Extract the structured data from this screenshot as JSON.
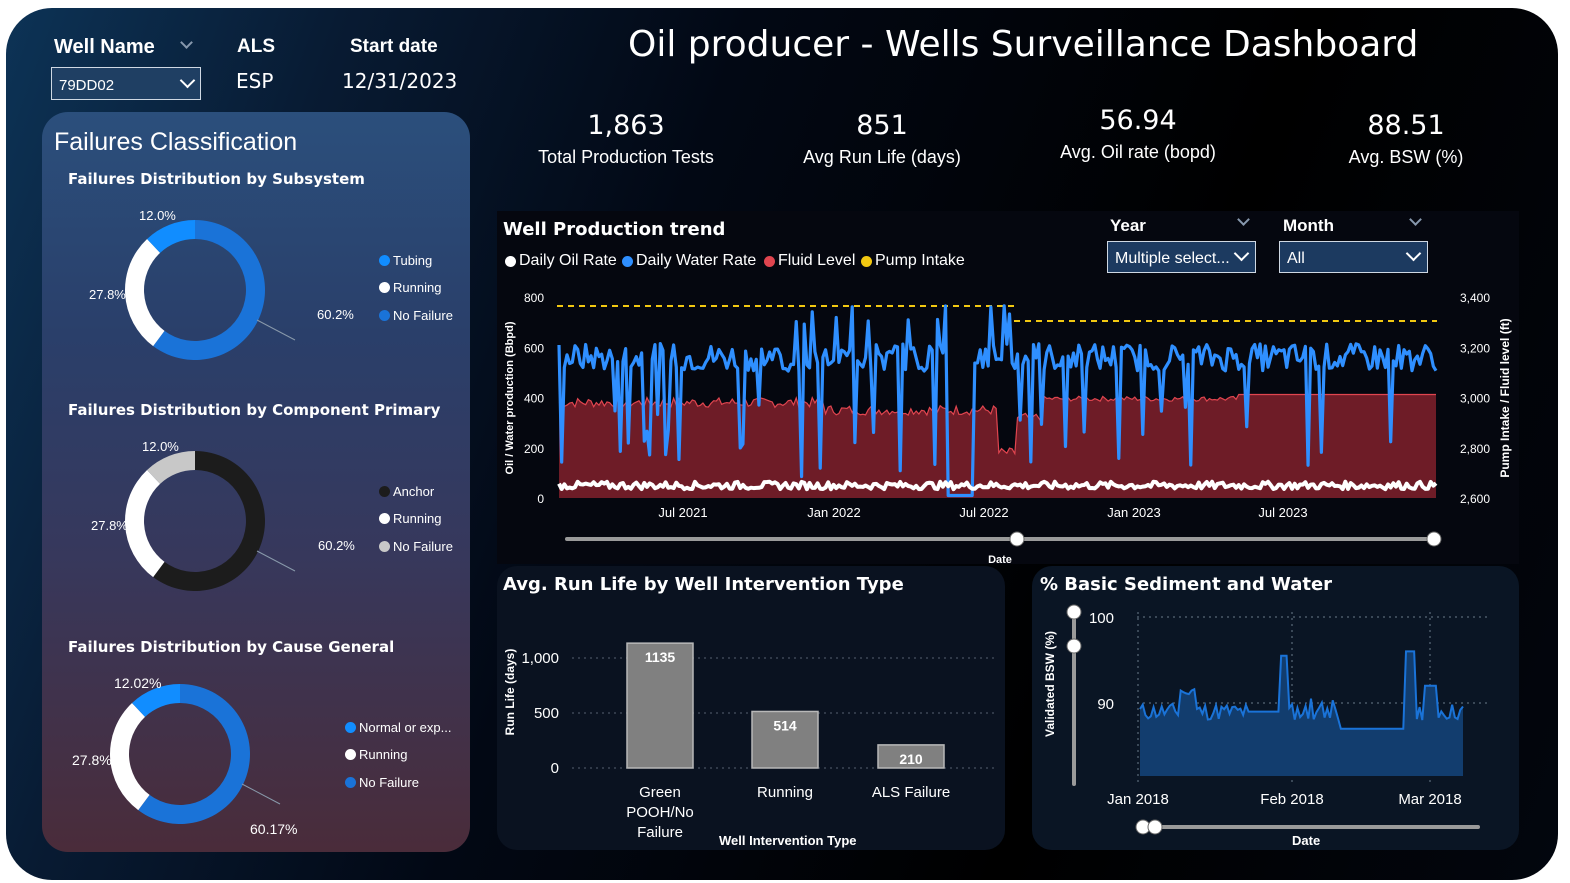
{
  "header": {
    "well_name_label": "Well Name",
    "well_name_value": "79DD02",
    "als_label": "ALS",
    "als_value": "ESP",
    "start_date_label": "Start date",
    "start_date_value": "12/31/2023",
    "title": "Oil producer - Wells Surveillance Dashboard"
  },
  "kpis": [
    {
      "value": "1,863",
      "label": "Total Production Tests"
    },
    {
      "value": "851",
      "label": "Avg Run Life (days)"
    },
    {
      "value": "56.94",
      "label": "Avg. Oil rate (bopd)"
    },
    {
      "value": "88.51",
      "label": "Avg. BSW (%)"
    }
  ],
  "failures": {
    "title": "Failures Classification",
    "donuts": [
      {
        "title": "Failures Distribution by Subsystem",
        "labels": [
          "12.0%",
          "27.8%",
          "60.2%"
        ],
        "legend": [
          "Tubing",
          "Running",
          "No Failure"
        ],
        "colors": [
          "#118dff",
          "#ffffff",
          "#1a73d8"
        ],
        "values": [
          12.0,
          27.8,
          60.2
        ]
      },
      {
        "title": "Failures Distribution by Component Primary",
        "labels": [
          "12.0%",
          "27.8%",
          "60.2%"
        ],
        "legend": [
          "Anchor",
          "Running",
          "No Failure"
        ],
        "colors": [
          "#c8c8c8",
          "#ffffff",
          "#1c1c1c"
        ],
        "values": [
          12.0,
          27.8,
          60.2
        ]
      },
      {
        "title": "Failures Distribution by Cause General",
        "labels": [
          "12.02%",
          "27.8%",
          "60.17%"
        ],
        "legend": [
          "Normal or exp...",
          "Running",
          "No Failure"
        ],
        "colors": [
          "#118dff",
          "#ffffff",
          "#1a73d8"
        ],
        "values": [
          12.02,
          27.8,
          60.17
        ]
      }
    ]
  },
  "production": {
    "title": "Well Production trend",
    "legend": [
      "Daily Oil Rate",
      "Daily Water Rate",
      "Fluid Level",
      "Pump Intake"
    ],
    "colors": {
      "oil": "#ffffff",
      "water": "#2f8fff",
      "fluid": "#e0454f",
      "pump": "#f2c811"
    },
    "year_label": "Year",
    "year_value": "Multiple select...",
    "month_label": "Month",
    "month_value": "All",
    "ylabel_left": "Oil / Water production (Bbpd)",
    "ylabel_right": "Pump Intake / Fluid level (ft)",
    "left_ticks": [
      "800",
      "600",
      "400",
      "200",
      "0"
    ],
    "right_ticks": [
      "3,400",
      "3,200",
      "3,000",
      "2,800",
      "2,600"
    ],
    "x_ticks": [
      "Jul 2021",
      "Jan 2022",
      "Jul 2022",
      "Jan 2023",
      "Jul 2023"
    ],
    "xlabel": "Date"
  },
  "run_life": {
    "title": "Avg. Run Life by Well Intervention Type",
    "ylabel": "Run Life (days)",
    "xlabel": "Well Intervention Type",
    "y_ticks": [
      "1,000",
      "500",
      "0"
    ],
    "bar_color": "#808080",
    "categories": [
      [
        "Green",
        "POOH/No",
        "Failure"
      ],
      [
        "Running"
      ],
      [
        "ALS Failure"
      ]
    ],
    "values": [
      1135,
      514,
      210
    ]
  },
  "bsw": {
    "title": "% Basic Sediment and Water",
    "ylabel": "Validated BSW (%)",
    "xlabel": "Date",
    "y_ticks": [
      "100",
      "90"
    ],
    "x_ticks": [
      "Jan 2018",
      "Feb 2018",
      "Mar 2018"
    ],
    "color": "#1a73d8"
  },
  "chart_data": [
    {
      "type": "line",
      "title": "Well Production trend",
      "xlabel": "Date",
      "ylabel": "Oil / Water production (Bbpd)",
      "ylabel_right": "Pump Intake / Fluid level (ft)",
      "ylim": [
        0,
        800
      ],
      "ylim_right": [
        2600,
        3400
      ],
      "x": [
        "2021-01",
        "2021-04",
        "2021-07",
        "2021-10",
        "2022-01",
        "2022-04",
        "2022-07",
        "2022-10",
        "2023-01",
        "2023-04",
        "2023-07",
        "2023-10",
        "2023-12"
      ],
      "series": [
        {
          "name": "Daily Oil Rate",
          "values": [
            50,
            55,
            55,
            50,
            55,
            50,
            50,
            55,
            55,
            55,
            55,
            55,
            55
          ]
        },
        {
          "name": "Daily Water Rate",
          "values": [
            580,
            620,
            600,
            560,
            540,
            560,
            520,
            580,
            560,
            600,
            550,
            560,
            550
          ]
        },
        {
          "name": "Fluid Level",
          "values": [
            2930,
            2970,
            2990,
            2960,
            2900,
            2970,
            2990,
            3000,
            3000,
            3010,
            3010,
            3010,
            3010
          ]
        },
        {
          "name": "Pump Intake",
          "values": [
            3380,
            3380,
            3380,
            3380,
            3380,
            3380,
            3330,
            3330,
            3330,
            3330,
            3330,
            3330,
            3330
          ]
        }
      ]
    },
    {
      "type": "bar",
      "title": "Avg. Run Life by Well Intervention Type",
      "categories": [
        "Green POOH/No Failure",
        "Running",
        "ALS Failure"
      ],
      "values": [
        1135,
        514,
        210
      ],
      "xlabel": "Well Intervention Type",
      "ylabel": "Run Life (days)",
      "ylim": [
        0,
        1200
      ]
    },
    {
      "type": "area",
      "title": "% Basic Sediment and Water",
      "xlabel": "Date",
      "ylabel": "Validated BSW (%)",
      "x": [
        "2018-01-01",
        "2018-01-08",
        "2018-01-15",
        "2018-01-22",
        "2018-02-01",
        "2018-02-08",
        "2018-02-15",
        "2018-02-22",
        "2018-03-01",
        "2018-03-08",
        "2018-03-15"
      ],
      "values": [
        89,
        90,
        91,
        88,
        89,
        95,
        90,
        87,
        87,
        95,
        89
      ],
      "ylim": [
        80,
        100
      ]
    }
  ]
}
